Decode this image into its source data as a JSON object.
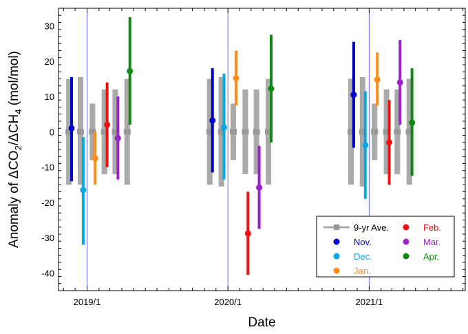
{
  "chart_data": {
    "type": "scatter",
    "xlabel": "Date",
    "ylabel": {
      "parts": [
        {
          "text": "Anomaly of ΔCO",
          "sub": false
        },
        {
          "text": "2",
          "sub": true
        },
        {
          "text": "/ΔCH",
          "sub": false
        },
        {
          "text": "4",
          "sub": true
        },
        {
          "text": " (mol/mol)",
          "sub": false
        }
      ]
    },
    "ylim": [
      -45,
      35
    ],
    "xlim": [
      "2018-10-19",
      "2021-09-07"
    ],
    "y_ticks": [
      -40,
      -30,
      -20,
      -10,
      0,
      10,
      20,
      30
    ],
    "x_ticks": [
      {
        "date": "2019-01-01",
        "label": "2019/1"
      },
      {
        "date": "2020-01-01",
        "label": "2020/1"
      },
      {
        "date": "2021-01-01",
        "label": "2021/1"
      }
    ],
    "vertical_reference_lines": [
      "2019-01-01",
      "2020-01-01",
      "2021-01-01"
    ],
    "grid": false,
    "legend_position": "bottom-right",
    "series": [
      {
        "name": "9-yr Ave.",
        "color": "#aaaaaa",
        "kind": "range-bar",
        "points": [
          {
            "x": "2018-11-15",
            "y": 0,
            "low": -15,
            "high": 15
          },
          {
            "x": "2018-12-15",
            "y": 0,
            "low": -15,
            "high": 15.5
          },
          {
            "x": "2019-01-15",
            "y": 0,
            "low": -8,
            "high": 8
          },
          {
            "x": "2019-02-15",
            "y": 0,
            "low": -12,
            "high": 12
          },
          {
            "x": "2019-03-15",
            "y": 0,
            "low": -12,
            "high": 12
          },
          {
            "x": "2019-04-15",
            "y": 0,
            "low": -15,
            "high": 15
          },
          {
            "x": "2019-11-15",
            "y": 0,
            "low": -15,
            "high": 15
          },
          {
            "x": "2019-12-15",
            "y": 0,
            "low": -15.5,
            "high": 15.5
          },
          {
            "x": "2020-01-15",
            "y": 0,
            "low": -8,
            "high": 8
          },
          {
            "x": "2020-02-15",
            "y": 0,
            "low": -12,
            "high": 12
          },
          {
            "x": "2020-03-15",
            "y": 0,
            "low": -12,
            "high": 12
          },
          {
            "x": "2020-04-15",
            "y": 0,
            "low": -15,
            "high": 15
          },
          {
            "x": "2020-11-15",
            "y": 0,
            "low": -15,
            "high": 15
          },
          {
            "x": "2020-12-15",
            "y": 0,
            "low": -15.5,
            "high": 15.5
          },
          {
            "x": "2021-01-15",
            "y": 0,
            "low": -8,
            "high": 8
          },
          {
            "x": "2021-02-15",
            "y": 0,
            "low": -12,
            "high": 12
          },
          {
            "x": "2021-03-15",
            "y": 0,
            "low": -12,
            "high": 12
          },
          {
            "x": "2021-04-15",
            "y": 0,
            "low": -15,
            "high": 15
          }
        ]
      },
      {
        "name": "Nov.",
        "color": "#0000cc",
        "kind": "point-error",
        "points": [
          {
            "x": "2018-11-22",
            "y": 1,
            "low": -14,
            "high": 15.5
          },
          {
            "x": "2019-11-22",
            "y": 3.2,
            "low": -11.5,
            "high": 18
          },
          {
            "x": "2020-11-22",
            "y": 10.5,
            "low": -4.5,
            "high": 25.5
          }
        ]
      },
      {
        "name": "Dec.",
        "color": "#0aa8e0",
        "kind": "point-error",
        "points": [
          {
            "x": "2018-12-22",
            "y": -16.5,
            "low": -32,
            "high": -1.5
          },
          {
            "x": "2019-12-22",
            "y": 1.2,
            "low": -13.5,
            "high": 16.5
          },
          {
            "x": "2020-12-22",
            "y": -3.8,
            "low": -19,
            "high": 11.5
          }
        ]
      },
      {
        "name": "Jan.",
        "color": "#ff8c1a",
        "kind": "point-error",
        "points": [
          {
            "x": "2019-01-22",
            "y": -7.5,
            "low": -15,
            "high": 0
          },
          {
            "x": "2020-01-22",
            "y": 15.2,
            "low": 7.5,
            "high": 23
          },
          {
            "x": "2021-01-22",
            "y": 14.8,
            "low": 7.5,
            "high": 22.5
          }
        ]
      },
      {
        "name": "Feb.",
        "color": "#ee1111",
        "kind": "point-error",
        "points": [
          {
            "x": "2019-02-22",
            "y": 2,
            "low": -10,
            "high": 14
          },
          {
            "x": "2020-02-22",
            "y": -28.8,
            "low": -40.5,
            "high": -17
          },
          {
            "x": "2021-02-22",
            "y": -3,
            "low": -15,
            "high": 9
          }
        ]
      },
      {
        "name": "Mar.",
        "color": "#9922cc",
        "kind": "point-error",
        "points": [
          {
            "x": "2019-03-22",
            "y": -1.8,
            "low": -13.5,
            "high": 10
          },
          {
            "x": "2020-03-22",
            "y": -15.8,
            "low": -27.5,
            "high": -4
          },
          {
            "x": "2021-03-22",
            "y": 14,
            "low": 2,
            "high": 26
          }
        ]
      },
      {
        "name": "Apr.",
        "color": "#118811",
        "kind": "point-error",
        "points": [
          {
            "x": "2019-04-22",
            "y": 17.2,
            "low": 2,
            "high": 32.5
          },
          {
            "x": "2020-04-22",
            "y": 12.2,
            "low": -3,
            "high": 27.5
          },
          {
            "x": "2021-04-22",
            "y": 2.6,
            "low": -12.5,
            "high": 18
          }
        ]
      }
    ],
    "legend": {
      "columns": [
        [
          {
            "label": "9-yr Ave.",
            "color": "#000000",
            "marker": "#aaaaaa",
            "style": "line-square"
          },
          {
            "label": "Nov.",
            "color": "#0000cc",
            "marker": "#0000cc",
            "style": "dot"
          },
          {
            "label": "Dec.",
            "color": "#0aa8e0",
            "marker": "#0aa8e0",
            "style": "dot"
          },
          {
            "label": "Jan.",
            "color": "#ff8c1a",
            "marker": "#ff8c1a",
            "style": "dot"
          }
        ],
        [
          {
            "label": "Feb.",
            "color": "#ee1111",
            "marker": "#ee1111",
            "style": "dot"
          },
          {
            "label": "Mar.",
            "color": "#9922cc",
            "marker": "#9922cc",
            "style": "dot"
          },
          {
            "label": "Apr.",
            "color": "#118811",
            "marker": "#118811",
            "style": "dot"
          }
        ]
      ]
    }
  }
}
